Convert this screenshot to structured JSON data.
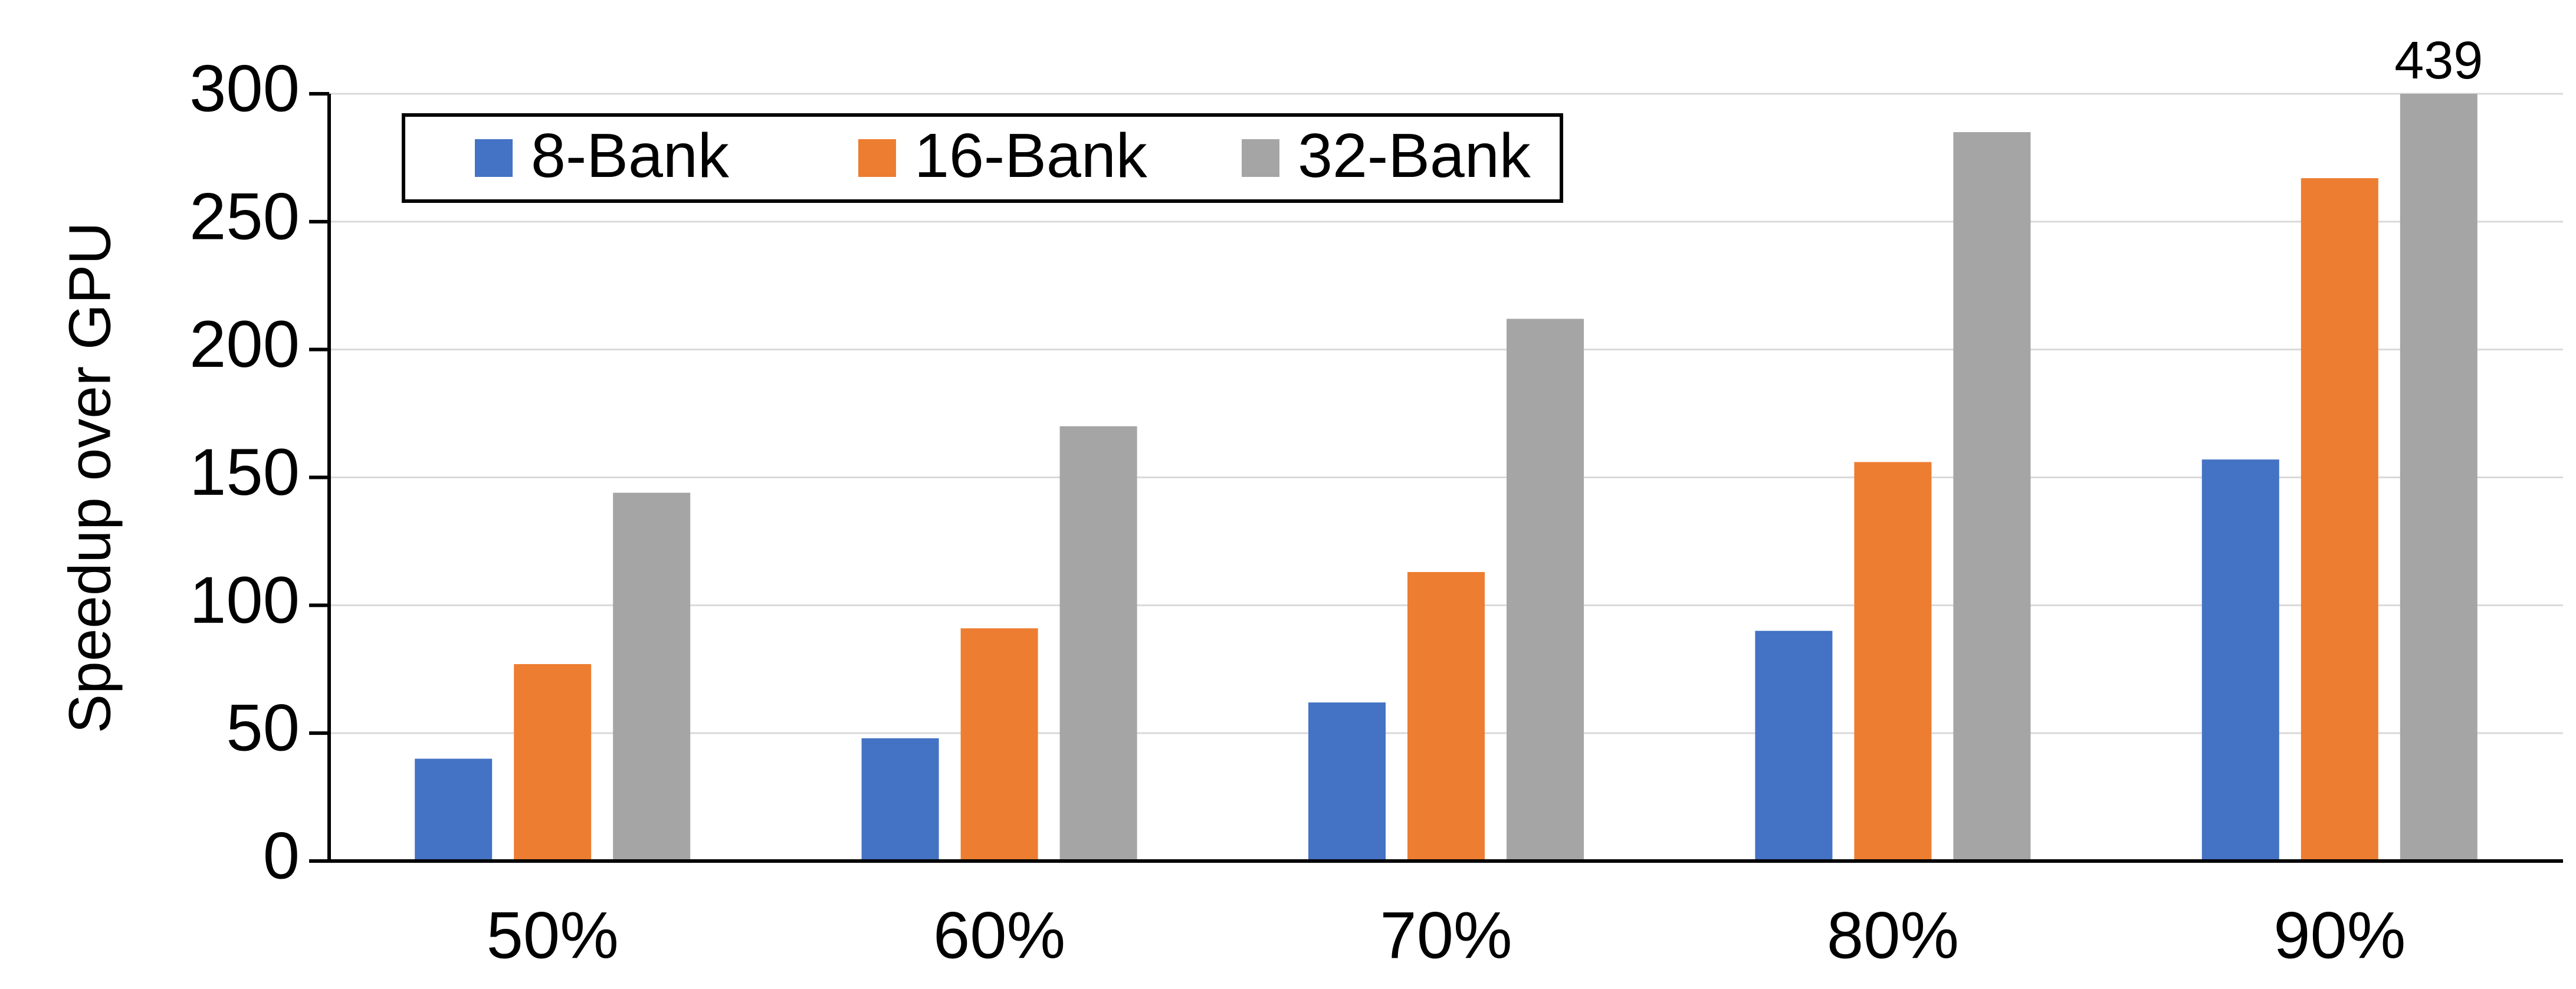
{
  "chart_data": {
    "type": "bar",
    "y_label": "Speedup over GPU",
    "categories": [
      "50%",
      "60%",
      "70%",
      "80%",
      "90%"
    ],
    "series": [
      {
        "name": "8-Bank",
        "color": "#4472c4",
        "values": [
          40,
          48,
          62,
          90,
          157
        ]
      },
      {
        "name": "16-Bank",
        "color": "#ed7d31",
        "values": [
          77,
          91,
          113,
          156,
          267
        ]
      },
      {
        "name": "32-Bank",
        "color": "#a5a5a5",
        "values": [
          144,
          170,
          212,
          285,
          439
        ],
        "value_labels": [
          null,
          null,
          null,
          null,
          "439"
        ]
      }
    ],
    "ylim": [
      0,
      300
    ],
    "yticks": [
      0,
      50,
      100,
      150,
      200,
      250,
      300
    ],
    "grid": true,
    "legend": "top-left"
  }
}
